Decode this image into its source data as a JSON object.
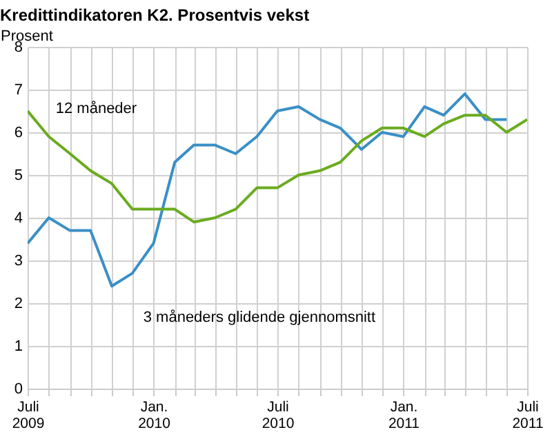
{
  "chart_data": {
    "type": "line",
    "title": "Kredittindikatoren K2. Prosentvis vekst",
    "ylabel": "Prosent",
    "x": [
      "2009-07",
      "2009-08",
      "2009-09",
      "2009-10",
      "2009-11",
      "2009-12",
      "2010-01",
      "2010-02",
      "2010-03",
      "2010-04",
      "2010-05",
      "2010-06",
      "2010-07",
      "2010-08",
      "2010-09",
      "2010-10",
      "2010-11",
      "2010-12",
      "2011-01",
      "2011-02",
      "2011-03",
      "2011-04",
      "2011-05",
      "2011-06",
      "2011-07"
    ],
    "series": [
      {
        "name": "3 måneders glidende gjennomsnitt",
        "color": "#3a8fc6",
        "values": [
          3.4,
          4.0,
          3.7,
          3.7,
          2.4,
          2.7,
          3.4,
          5.3,
          5.7,
          5.7,
          5.5,
          5.9,
          6.5,
          6.6,
          6.3,
          6.1,
          5.6,
          6.0,
          5.9,
          6.6,
          6.4,
          6.9,
          6.3,
          6.3,
          null
        ]
      },
      {
        "name": "12 måneder",
        "color": "#6aab1f",
        "values": [
          6.5,
          5.9,
          5.5,
          5.1,
          4.8,
          4.2,
          4.2,
          4.2,
          3.9,
          4.0,
          4.2,
          4.7,
          4.7,
          5.0,
          5.1,
          5.3,
          5.8,
          6.1,
          6.1,
          5.9,
          6.2,
          6.4,
          6.4,
          6.0,
          6.3
        ]
      }
    ],
    "xlim": [
      "2009-07",
      "2011-07"
    ],
    "xticks": [
      {
        "value": "2009-07",
        "label": "Juli 2009"
      },
      {
        "value": "2009-08",
        "label": null
      },
      {
        "value": "2009-09",
        "label": null
      },
      {
        "value": "2009-10",
        "label": null
      },
      {
        "value": "2009-11",
        "label": null
      },
      {
        "value": "2009-12",
        "label": null
      },
      {
        "value": "2010-01",
        "label": "Jan. 2010"
      },
      {
        "value": "2010-02",
        "label": null
      },
      {
        "value": "2010-03",
        "label": null
      },
      {
        "value": "2010-04",
        "label": null
      },
      {
        "value": "2010-05",
        "label": null
      },
      {
        "value": "2010-06",
        "label": null
      },
      {
        "value": "2010-07",
        "label": "Juli 2010"
      },
      {
        "value": "2010-08",
        "label": null
      },
      {
        "value": "2010-09",
        "label": null
      },
      {
        "value": "2010-10",
        "label": null
      },
      {
        "value": "2010-11",
        "label": null
      },
      {
        "value": "2010-12",
        "label": null
      },
      {
        "value": "2011-01",
        "label": "Jan. 2011"
      },
      {
        "value": "2011-02",
        "label": null
      },
      {
        "value": "2011-03",
        "label": null
      },
      {
        "value": "2011-04",
        "label": null
      },
      {
        "value": "2011-05",
        "label": null
      },
      {
        "value": "2011-06",
        "label": null
      },
      {
        "value": "2011-07",
        "label": "Juli 2011"
      }
    ],
    "ylim": [
      0,
      8
    ],
    "yticks": [
      0,
      1,
      2,
      3,
      4,
      5,
      6,
      7,
      8
    ],
    "grid": true,
    "legend": false,
    "marker": "none",
    "line_style": "solid"
  }
}
